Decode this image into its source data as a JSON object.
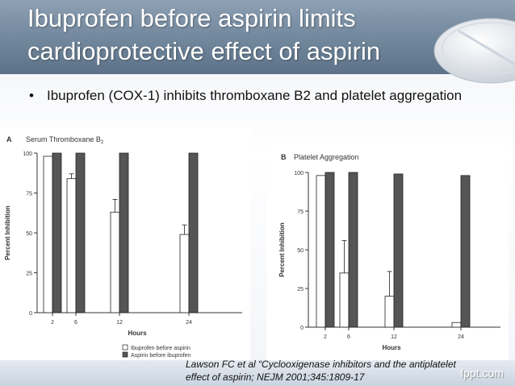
{
  "slide": {
    "title_line1": "Ibuprofen before aspirin limits",
    "title_line2": "cardioprotective effect of aspirin",
    "bullet_symbol": "•",
    "bullet_text": "Ibuprofen (COX-1) inhibits  thromboxane B2 and platelet aggregation",
    "citation_line1": "Lawson FC et al “Cyclooxigenase inhibitors and the antiplatelet",
    "citation_line2": "effect of aspirin; NEJM 2001;345:1809-17",
    "watermark": "fppt.com"
  },
  "colors": {
    "title_band": "#6e8499",
    "ibuprofen_bar": "#ffffff",
    "aspirin_bar": "#555555"
  },
  "chart_data": [
    {
      "type": "bar",
      "panel_letter": "A",
      "title": "Serum Thromboxane B",
      "title_subscript": "2",
      "xlabel": "Hours",
      "ylabel": "Percent Inhibition",
      "ylim": [
        0,
        100
      ],
      "yticks": [
        "0",
        "25",
        "50",
        "75",
        "100"
      ],
      "categories": [
        "2",
        "6",
        "12",
        "24"
      ],
      "series": [
        {
          "name": "Ibuprofen before aspirin",
          "values": [
            98,
            84,
            63,
            49
          ],
          "errors": [
            0,
            3,
            8,
            6
          ]
        },
        {
          "name": "Aspirin before ibuprofen",
          "values": [
            100,
            100,
            100,
            100
          ],
          "errors": [
            0,
            0,
            0,
            0
          ]
        }
      ],
      "legend": "bottom-right"
    },
    {
      "type": "bar",
      "panel_letter": "B",
      "title": "Platelet Aggregation",
      "xlabel": "Hours",
      "ylabel": "Percent Inhibition",
      "ylim": [
        0,
        100
      ],
      "yticks": [
        "0",
        "25",
        "50",
        "75",
        "100"
      ],
      "categories": [
        "2",
        "6",
        "12",
        "24"
      ],
      "series": [
        {
          "name": "Ibuprofen before aspirin",
          "values": [
            98,
            35,
            20,
            3
          ],
          "errors": [
            0,
            21,
            16,
            0
          ]
        },
        {
          "name": "Aspirin before ibuprofen",
          "values": [
            100,
            100,
            99,
            98
          ],
          "errors": [
            0,
            0,
            0,
            0
          ]
        }
      ]
    }
  ]
}
